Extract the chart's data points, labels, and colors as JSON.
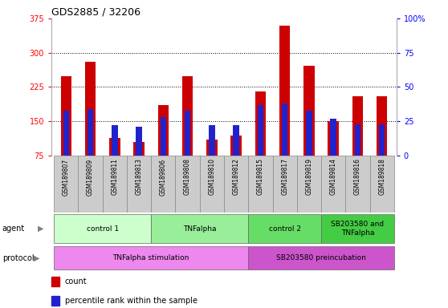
{
  "title": "GDS2885 / 32206",
  "samples": [
    "GSM189807",
    "GSM189809",
    "GSM189811",
    "GSM189813",
    "GSM189806",
    "GSM189808",
    "GSM189810",
    "GSM189812",
    "GSM189815",
    "GSM189817",
    "GSM189819",
    "GSM189814",
    "GSM189816",
    "GSM189818"
  ],
  "count_values": [
    248,
    280,
    113,
    105,
    185,
    248,
    110,
    118,
    215,
    360,
    272,
    150,
    205,
    205
  ],
  "percentile_values": [
    33,
    34,
    22,
    21,
    28,
    33,
    22,
    22,
    37,
    38,
    33,
    27,
    23,
    23
  ],
  "ylim_left": [
    75,
    375
  ],
  "ylim_right": [
    0,
    100
  ],
  "yticks_left": [
    75,
    150,
    225,
    300,
    375
  ],
  "yticks_right": [
    0,
    25,
    50,
    75,
    100
  ],
  "ytick_right_labels": [
    "0",
    "25",
    "50",
    "75",
    "100%"
  ],
  "bar_color": "#cc0000",
  "percentile_color": "#2222cc",
  "agent_groups": [
    {
      "label": "control 1",
      "start": 0,
      "end": 3,
      "color": "#ccffcc"
    },
    {
      "label": "TNFalpha",
      "start": 4,
      "end": 7,
      "color": "#99ee99"
    },
    {
      "label": "control 2",
      "start": 8,
      "end": 10,
      "color": "#66dd66"
    },
    {
      "label": "SB203580 and\nTNFalpha",
      "start": 11,
      "end": 13,
      "color": "#44cc44"
    }
  ],
  "protocol_groups": [
    {
      "label": "TNFalpha stimulation",
      "start": 0,
      "end": 7,
      "color": "#ee88ee"
    },
    {
      "label": "SB203580 preincubation",
      "start": 8,
      "end": 13,
      "color": "#cc55cc"
    }
  ],
  "bar_width": 0.45,
  "percentile_bar_width": 0.25,
  "grid_dotted_at": [
    150,
    225,
    300
  ],
  "xlim": [
    -0.6,
    13.6
  ]
}
